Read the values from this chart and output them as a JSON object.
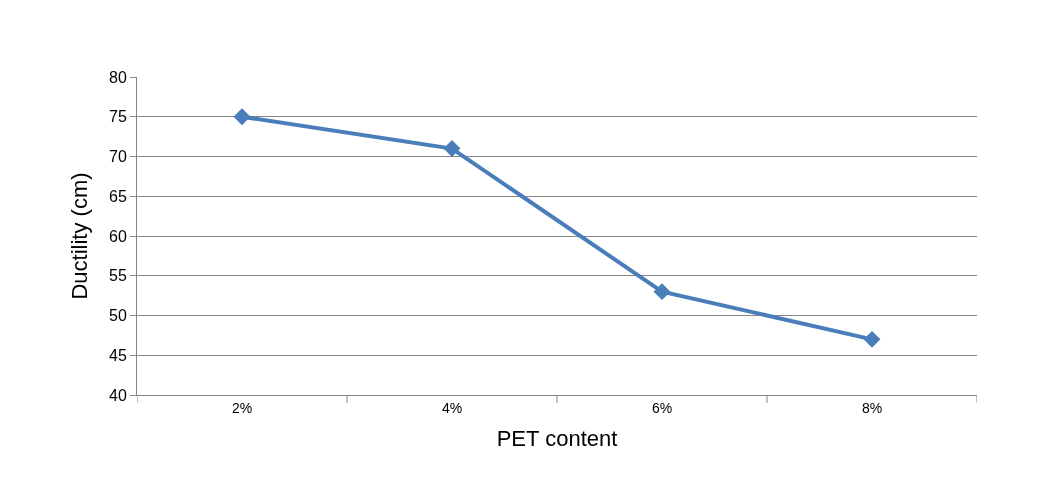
{
  "chart_data": {
    "type": "line",
    "xlabel": "PET content",
    "ylabel": "Ductility (cm)",
    "categories": [
      "2%",
      "4%",
      "6%",
      "8%"
    ],
    "series": [
      {
        "color": "#4a7ebb",
        "values": [
          75,
          71,
          53,
          47
        ]
      }
    ],
    "ylim": [
      40,
      80
    ],
    "yticks": [
      40,
      45,
      50,
      55,
      60,
      65,
      70,
      75,
      80
    ],
    "grid": "y",
    "marker": "diamond",
    "line_style": "solid"
  }
}
